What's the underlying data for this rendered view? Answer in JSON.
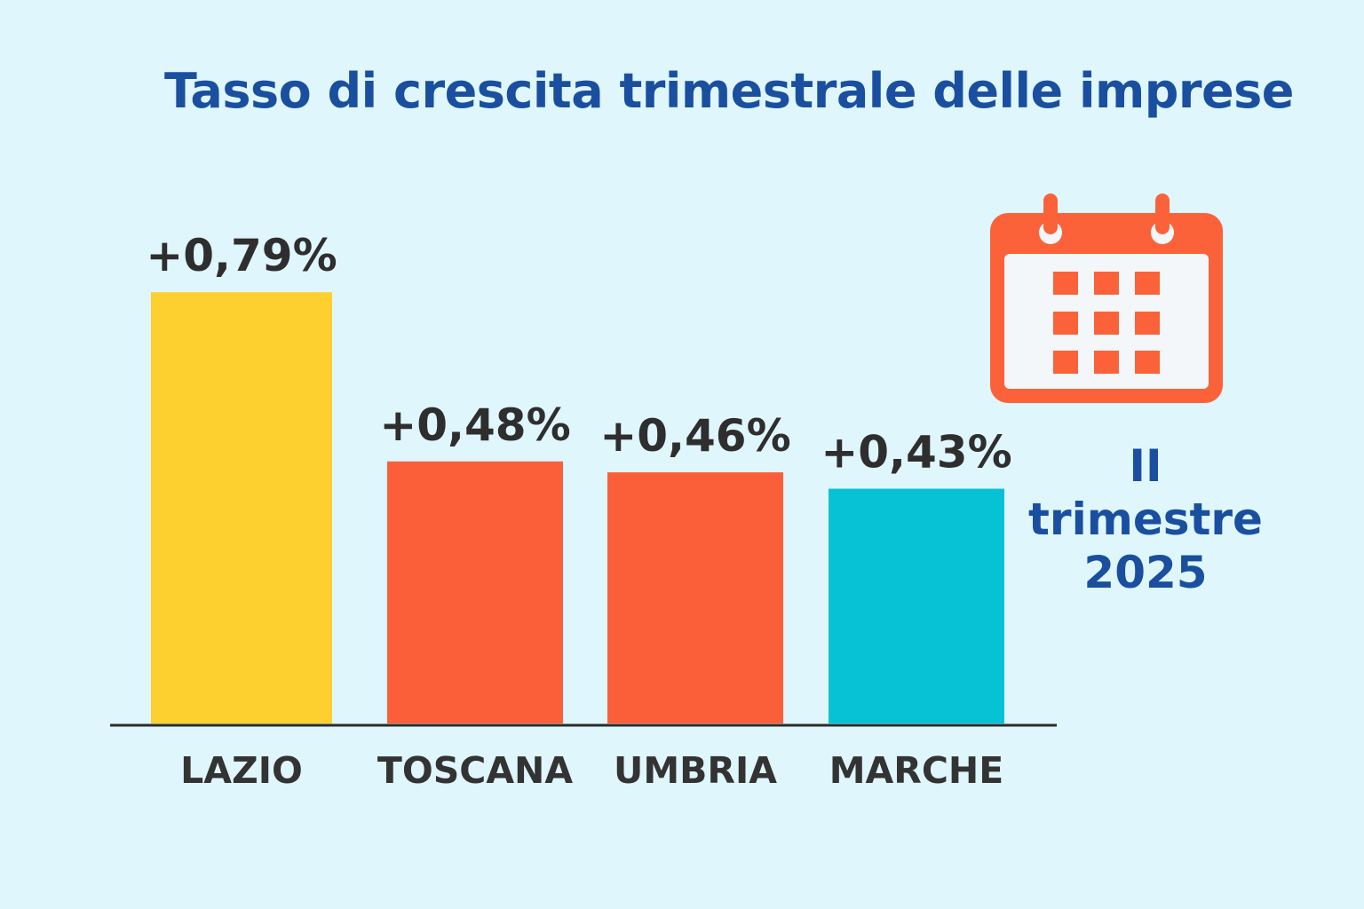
{
  "title": "Tasso di crescita trimestrale delle imprese",
  "period": {
    "line1": "II",
    "line2": "trimestre",
    "line3": "2025"
  },
  "icons": {
    "calendar": "calendar-icon"
  },
  "colors": {
    "background": "#dff6fc",
    "title": "#1a4fa0",
    "calendar": "#fb623a"
  },
  "chart_data": {
    "type": "bar",
    "title": "Tasso di crescita trimestrale delle imprese",
    "categories": [
      "LAZIO",
      "TOSCANA",
      "UMBRIA",
      "MARCHE"
    ],
    "values": [
      0.79,
      0.48,
      0.46,
      0.43
    ],
    "value_labels": [
      "+0,79%",
      "+0,48%",
      "+0,46%",
      "+0,43%"
    ],
    "bar_colors": [
      "#fdd02f",
      "#fb5f3a",
      "#fb5f3a",
      "#06c2d4"
    ],
    "xlabel": "",
    "ylabel": "",
    "grid": false,
    "legend": "none"
  }
}
